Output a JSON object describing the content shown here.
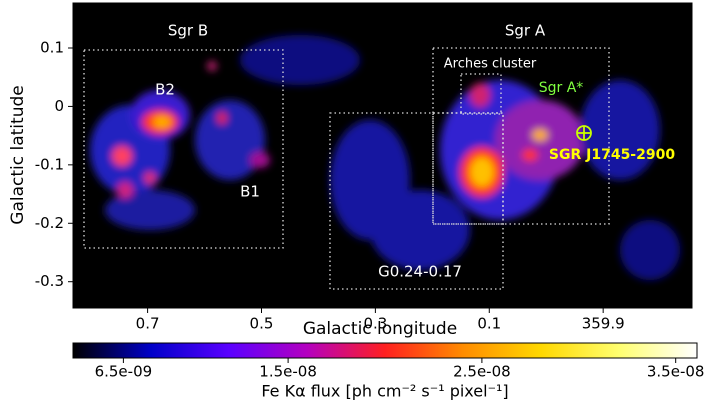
{
  "chart_data": {
    "type": "image",
    "xlabel": "Galactic longitude",
    "ylabel": "Galactic latitude",
    "xlim": [
      0.831,
      -0.256
    ],
    "ylim": [
      -0.345,
      0.177
    ],
    "xticks": [
      0.7,
      0.5,
      0.3,
      0.1,
      {
        "value": -0.1,
        "label": "359.9"
      }
    ],
    "yticks": [
      0.1,
      0,
      -0.1,
      -0.2,
      -0.3
    ],
    "annotations": [
      "Sgr B",
      "B2",
      "B1",
      "Sgr A",
      "Arches cluster",
      "Sgr A*",
      "SGR J1745-2900",
      "G0.24-0.17"
    ],
    "colorbar": {
      "label": "Fe Kα flux [ph cm⁻² s⁻¹ pixel⁻¹]",
      "lim": [
        3.9e-09,
        3.61e-08
      ],
      "ticks": [
        {
          "value": 6.5e-09,
          "label": "6.5e-09"
        },
        {
          "value": 1.5e-08,
          "label": "1.5e-08"
        },
        {
          "value": 2.5e-08,
          "label": "2.5e-08"
        },
        {
          "value": 3.5e-08,
          "label": "3.5e-08"
        }
      ],
      "colormap": [
        "#000000",
        "#0000c8",
        "#5a00ff",
        "#b400c0",
        "#ff2020",
        "#ff8c00",
        "#ffd800",
        "#ffff70",
        "#ffffff"
      ]
    }
  }
}
